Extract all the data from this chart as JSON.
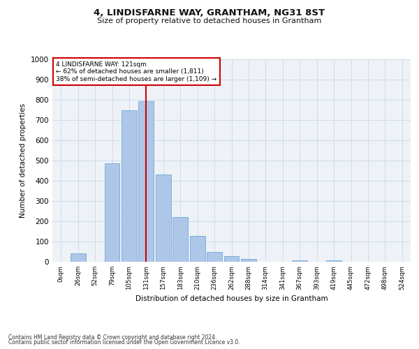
{
  "title": "4, LINDISFARNE WAY, GRANTHAM, NG31 8ST",
  "subtitle": "Size of property relative to detached houses in Grantham",
  "xlabel": "Distribution of detached houses by size in Grantham",
  "ylabel": "Number of detached properties",
  "bar_labels": [
    "0sqm",
    "26sqm",
    "52sqm",
    "79sqm",
    "105sqm",
    "131sqm",
    "157sqm",
    "183sqm",
    "210sqm",
    "236sqm",
    "262sqm",
    "288sqm",
    "314sqm",
    "341sqm",
    "367sqm",
    "393sqm",
    "419sqm",
    "445sqm",
    "472sqm",
    "498sqm",
    "524sqm"
  ],
  "bar_values": [
    0,
    40,
    0,
    485,
    748,
    793,
    432,
    220,
    126,
    50,
    28,
    15,
    0,
    0,
    8,
    0,
    7,
    0,
    0,
    0,
    0
  ],
  "bar_color": "#aec6e8",
  "bar_edge_color": "#5a9fd4",
  "vline_x_index": 5,
  "vline_color": "#cc0000",
  "annotation_line1": "4 LINDISFARNE WAY: 121sqm",
  "annotation_line2": "← 62% of detached houses are smaller (1,811)",
  "annotation_line3": "38% of semi-detached houses are larger (1,109) →",
  "annotation_box_color": "#cc0000",
  "ylim": [
    0,
    1000
  ],
  "yticks": [
    0,
    100,
    200,
    300,
    400,
    500,
    600,
    700,
    800,
    900,
    1000
  ],
  "grid_color": "#c8d8e8",
  "bg_color": "#eef2f7",
  "footer_line1": "Contains HM Land Registry data © Crown copyright and database right 2024.",
  "footer_line2": "Contains public sector information licensed under the Open Government Licence v3.0."
}
